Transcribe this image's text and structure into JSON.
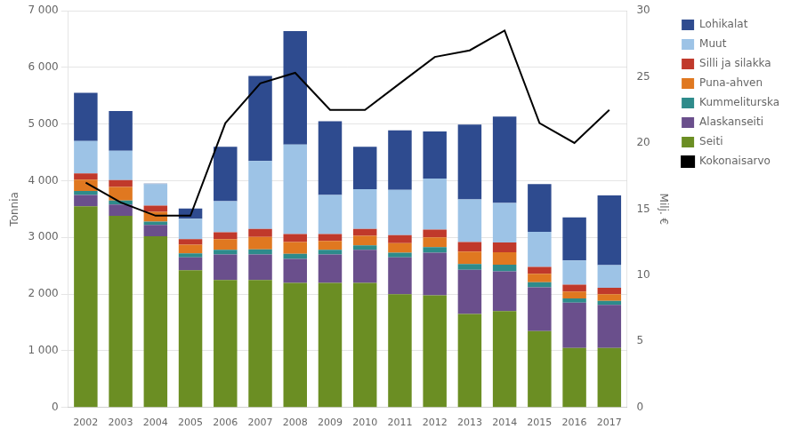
{
  "chart_data": {
    "type": "bar",
    "stacked": true,
    "grid": true,
    "legend": "right",
    "ylabel": "Tonnia",
    "y2label": "Milj. €",
    "categories": [
      "2002",
      "2003",
      "2004",
      "2005",
      "2006",
      "2007",
      "2008",
      "2009",
      "2010",
      "2011",
      "2012",
      "2013",
      "2014",
      "2015",
      "2016",
      "2017"
    ],
    "series": [
      {
        "name": "Seiti",
        "color": "#6b8e23",
        "values": [
          3550,
          3380,
          3020,
          2420,
          2250,
          2250,
          2200,
          2200,
          2200,
          2000,
          1980,
          1650,
          1700,
          1350,
          1050,
          1050
        ]
      },
      {
        "name": "Alaskanseiti",
        "color": "#6a4f8c",
        "values": [
          200,
          200,
          200,
          230,
          450,
          450,
          420,
          500,
          580,
          650,
          750,
          780,
          700,
          770,
          800,
          760
        ]
      },
      {
        "name": "Kummeliturska",
        "color": "#2e8b8b",
        "values": [
          70,
          70,
          60,
          70,
          80,
          90,
          90,
          80,
          80,
          80,
          100,
          100,
          120,
          90,
          75,
          70
        ]
      },
      {
        "name": "Puna-ahven",
        "color": "#e07820",
        "values": [
          200,
          240,
          170,
          150,
          190,
          220,
          210,
          160,
          170,
          170,
          170,
          220,
          220,
          150,
          120,
          120
        ]
      },
      {
        "name": "Silli ja silakka",
        "color": "#c0392b",
        "values": [
          110,
          120,
          110,
          100,
          120,
          140,
          140,
          120,
          120,
          140,
          140,
          170,
          170,
          120,
          120,
          110
        ]
      },
      {
        "name": "Muut",
        "color": "#9dc3e6",
        "values": [
          570,
          520,
          380,
          360,
          550,
          1200,
          1580,
          690,
          700,
          800,
          900,
          750,
          700,
          620,
          430,
          400
        ]
      },
      {
        "name": "Lohikalat",
        "color": "#2e4b8f",
        "values": [
          850,
          700,
          10,
          180,
          960,
          1500,
          2000,
          1300,
          750,
          1050,
          830,
          1320,
          1520,
          840,
          760,
          1230
        ]
      },
      {
        "name": "Kokonaisarvo",
        "type": "line",
        "axis": "y2",
        "color": "#000000",
        "values": [
          17.0,
          15.5,
          14.5,
          14.5,
          21.5,
          24.5,
          25.3,
          22.5,
          22.5,
          24.5,
          26.5,
          27.0,
          28.5,
          21.5,
          20.0,
          22.5
        ]
      }
    ],
    "ylim": [
      0,
      7000
    ],
    "yticks": [
      0,
      {
        "value": 1000,
        "label": "1 000"
      },
      {
        "value": 2000,
        "label": "2 000"
      },
      {
        "value": 3000,
        "label": "3 000"
      },
      {
        "value": 4000,
        "label": "4 000"
      },
      {
        "value": 5000,
        "label": "5 000"
      },
      {
        "value": 6000,
        "label": "6 000"
      },
      {
        "value": 7000,
        "label": "7 000"
      }
    ],
    "y2lim": [
      0,
      30
    ],
    "y2ticks": [
      0,
      5,
      10,
      15,
      20,
      25,
      30
    ]
  }
}
